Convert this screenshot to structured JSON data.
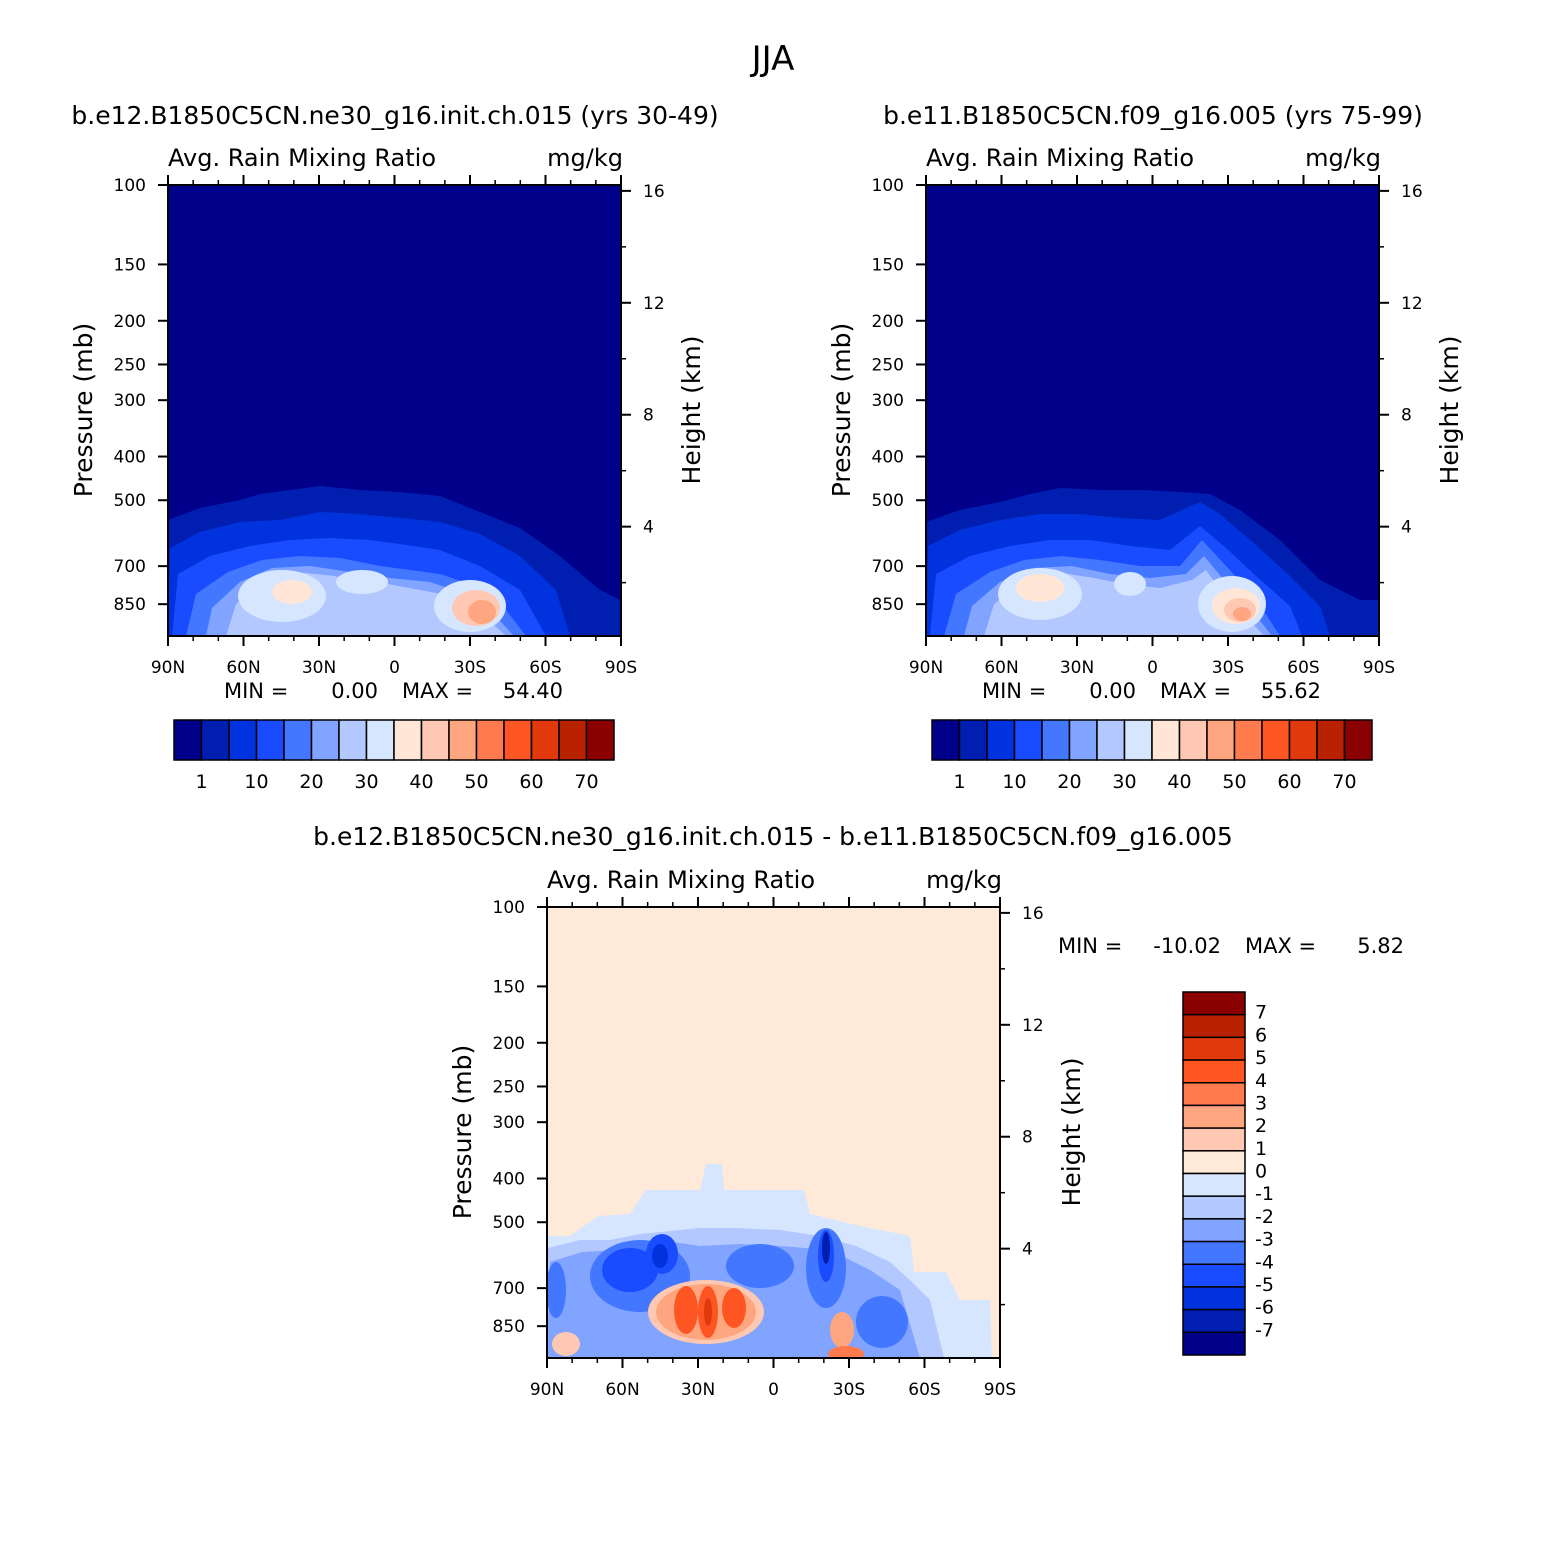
{
  "figure": {
    "season": "JJA"
  },
  "chart_data": [
    {
      "type": "heatmap",
      "title": "b.e12.B1850C5CN.ne30_g16.init.ch.015 (yrs 30-49)",
      "left_subtitle": "Avg. Rain Mixing Ratio",
      "right_subtitle": "mg/kg",
      "ylabel": "Pressure (mb)",
      "y2label": "Height (km)",
      "x_ticks": [
        "90N",
        "60N",
        "30N",
        "0",
        "30S",
        "60S",
        "90S"
      ],
      "x_tick_values": [
        90,
        60,
        30,
        0,
        -30,
        -60,
        -90
      ],
      "xlim": [
        90,
        -90
      ],
      "y_ticks": [
        100,
        150,
        200,
        250,
        300,
        400,
        500,
        700,
        850
      ],
      "y_scale": "log",
      "ylim": [
        100,
        1000
      ],
      "y2_ticks": [
        16,
        12,
        8,
        4
      ],
      "stats": {
        "min_label": "MIN =",
        "min": "0.00",
        "max_label": "MAX =",
        "max": "54.40"
      },
      "colorbar": {
        "orientation": "horizontal",
        "levels": [
          1,
          5,
          10,
          15,
          20,
          25,
          30,
          35,
          40,
          45,
          50,
          55,
          60,
          65,
          70
        ],
        "labels": [
          "1",
          "10",
          "20",
          "30",
          "40",
          "50",
          "60",
          "70"
        ],
        "colors": [
          "#00008b",
          "#001fb0",
          "#0033dd",
          "#1a4cff",
          "#4477ff",
          "#80a4ff",
          "#b3c8ff",
          "#d6e6ff",
          "#ffe6d6",
          "#ffc8b3",
          "#ffa680",
          "#ff7a4d",
          "#ff5522",
          "#e03a0c",
          "#b82200",
          "#8b0000"
        ]
      }
    },
    {
      "type": "heatmap",
      "title": "b.e11.B1850C5CN.f09_g16.005 (yrs 75-99)",
      "left_subtitle": "Avg. Rain Mixing Ratio",
      "right_subtitle": "mg/kg",
      "ylabel": "Pressure (mb)",
      "y2label": "Height (km)",
      "x_ticks": [
        "90N",
        "60N",
        "30N",
        "0",
        "30S",
        "60S",
        "90S"
      ],
      "x_tick_values": [
        90,
        60,
        30,
        0,
        -30,
        -60,
        -90
      ],
      "xlim": [
        90,
        -90
      ],
      "y_ticks": [
        100,
        150,
        200,
        250,
        300,
        400,
        500,
        700,
        850
      ],
      "y_scale": "log",
      "ylim": [
        100,
        1000
      ],
      "y2_ticks": [
        16,
        12,
        8,
        4
      ],
      "stats": {
        "min_label": "MIN =",
        "min": "0.00",
        "max_label": "MAX =",
        "max": "55.62"
      },
      "colorbar": {
        "orientation": "horizontal",
        "levels": [
          1,
          5,
          10,
          15,
          20,
          25,
          30,
          35,
          40,
          45,
          50,
          55,
          60,
          65,
          70
        ],
        "labels": [
          "1",
          "10",
          "20",
          "30",
          "40",
          "50",
          "60",
          "70"
        ],
        "colors": [
          "#00008b",
          "#001fb0",
          "#0033dd",
          "#1a4cff",
          "#4477ff",
          "#80a4ff",
          "#b3c8ff",
          "#d6e6ff",
          "#ffe6d6",
          "#ffc8b3",
          "#ffa680",
          "#ff7a4d",
          "#ff5522",
          "#e03a0c",
          "#b82200",
          "#8b0000"
        ]
      }
    },
    {
      "type": "heatmap",
      "title": "b.e12.B1850C5CN.ne30_g16.init.ch.015 - b.e11.B1850C5CN.f09_g16.005",
      "left_subtitle": "Avg. Rain Mixing Ratio",
      "right_subtitle": "mg/kg",
      "ylabel": "Pressure (mb)",
      "y2label": "Height (km)",
      "x_ticks": [
        "90N",
        "60N",
        "30N",
        "0",
        "30S",
        "60S",
        "90S"
      ],
      "x_tick_values": [
        90,
        60,
        30,
        0,
        -30,
        -60,
        -90
      ],
      "xlim": [
        90,
        -90
      ],
      "y_ticks": [
        100,
        150,
        200,
        250,
        300,
        400,
        500,
        700,
        850
      ],
      "y_scale": "log",
      "ylim": [
        100,
        1000
      ],
      "y2_ticks": [
        16,
        12,
        8,
        4
      ],
      "stats": {
        "min_label": "MIN =",
        "min": "-10.02",
        "max_label": "MAX =",
        "max": "5.82"
      },
      "colorbar": {
        "orientation": "vertical",
        "labels": [
          "7",
          "6",
          "5",
          "4",
          "3",
          "2",
          "1",
          "0",
          "-1",
          "-2",
          "-3",
          "-4",
          "-5",
          "-6",
          "-7"
        ],
        "colors": [
          "#8b0000",
          "#b82200",
          "#e03a0c",
          "#ff5522",
          "#ff7a4d",
          "#ffa680",
          "#ffc8b3",
          "#ffe9d9",
          "#d6e6ff",
          "#b3c8ff",
          "#80a4ff",
          "#4477ff",
          "#1a4cff",
          "#0033dd",
          "#001fb0",
          "#00008b"
        ]
      }
    }
  ]
}
